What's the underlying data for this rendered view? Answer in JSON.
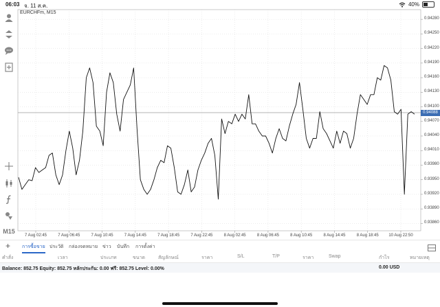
{
  "status_bar": {
    "time": "06:03",
    "date": "จ. 11 ส.ค.",
    "battery_percent": "40%",
    "battery_level": 0.4
  },
  "chart": {
    "symbol": "EURCHFm, M15",
    "current_price": "0.94088",
    "price_ticks": [
      "0.94280",
      "0.94250",
      "0.94220",
      "0.94190",
      "0.94160",
      "0.94130",
      "0.94100",
      "0.94070",
      "0.94040",
      "0.94010",
      "0.93980",
      "0.93950",
      "0.93920",
      "0.93890",
      "0.93860"
    ],
    "time_ticks": [
      "7 Aug 02:45",
      "7 Aug 06:45",
      "7 Aug 10:45",
      "7 Aug 14:45",
      "7 Aug 18:45",
      "7 Aug 22:45",
      "8 Aug 02:45",
      "8 Aug 06:45",
      "8 Aug 10:45",
      "8 Aug 14:45",
      "8 Aug 18:45",
      "10 Aug 22:50"
    ]
  },
  "chart_data": {
    "type": "line",
    "title": "EURCHFm, M15",
    "ylim": [
      0.93845,
      0.943
    ],
    "current_price": 0.94088,
    "values": [
      0.93955,
      0.9393,
      0.9394,
      0.9395,
      0.93948,
      0.93975,
      0.93965,
      0.9397,
      0.93975,
      0.94,
      0.94005,
      0.9396,
      0.9394,
      0.9396,
      0.9401,
      0.9405,
      0.94015,
      0.9396,
      0.9399,
      0.9405,
      0.9416,
      0.9418,
      0.9415,
      0.9406,
      0.9405,
      0.9402,
      0.9413,
      0.9417,
      0.9415,
      0.94085,
      0.9405,
      0.94115,
      0.9413,
      0.94145,
      0.9418,
      0.94055,
      0.9395,
      0.9393,
      0.9392,
      0.9393,
      0.9395,
      0.93975,
      0.9399,
      0.93985,
      0.9402,
      0.94015,
      0.93975,
      0.93925,
      0.9392,
      0.9394,
      0.9397,
      0.93925,
      0.93935,
      0.9397,
      0.9399,
      0.94005,
      0.94025,
      0.94035,
      0.94,
      0.9391,
      0.94075,
      0.94045,
      0.9407,
      0.94065,
      0.94085,
      0.9407,
      0.94085,
      0.94075,
      0.94125,
      0.94065,
      0.94065,
      0.9405,
      0.9404,
      0.9404,
      0.94025,
      0.94005,
      0.94035,
      0.94055,
      0.94035,
      0.9403,
      0.9406,
      0.94085,
      0.94105,
      0.9415,
      0.94095,
      0.94035,
      0.94015,
      0.94035,
      0.94035,
      0.9409,
      0.94055,
      0.94045,
      0.9403,
      0.94015,
      0.9405,
      0.94025,
      0.9405,
      0.94045,
      0.94015,
      0.94035,
      0.94085,
      0.94125,
      0.94115,
      0.94105,
      0.94125,
      0.94125,
      0.9416,
      0.94155,
      0.94185,
      0.9418,
      0.94155,
      0.9409,
      0.94085,
      0.94095,
      0.9392,
      0.94085,
      0.9409,
      0.94085
    ]
  },
  "toolbar": {
    "timeframe": "M15"
  },
  "tabs": [
    {
      "label": "การซื้อขาย",
      "active": true
    },
    {
      "label": "ประวัติ",
      "active": false
    },
    {
      "label": "กล่องจดหมาย",
      "active": false
    },
    {
      "label": "ข่าว",
      "active": false
    },
    {
      "label": "บันทึก",
      "active": false
    },
    {
      "label": "การตั้งค่า",
      "active": false
    }
  ],
  "table_header": [
    "คำสั่ง",
    "เวลา",
    "ประเภท",
    "ขนาด",
    "สัญลักษณ์",
    "ราคา",
    "S/L",
    "T/P",
    "ราคา",
    "Swap",
    "กำไร",
    "หมายเหตุ"
  ],
  "balance": {
    "text": "Balance: 852.75 Equity: 852.75 หลักประกัน: 0.00 ฟรี: 852.75 Level: 0.00%",
    "profit": "0.00  USD"
  },
  "colors": {
    "accent": "#2a66c7",
    "price_tag": "#3b6db3",
    "line": "#111111",
    "grid": "#d9d9d9"
  }
}
